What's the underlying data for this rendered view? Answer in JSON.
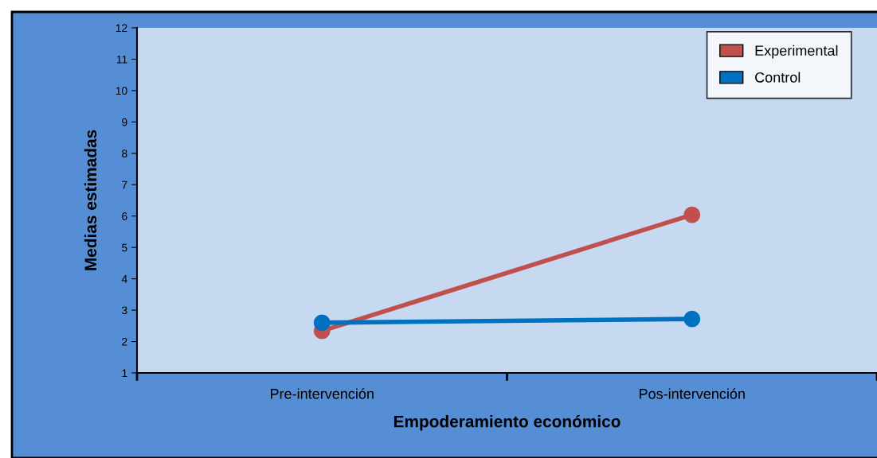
{
  "chart_data": {
    "type": "line",
    "xlabel": "Empoderamiento económico",
    "ylabel": "Medias estimadas",
    "categories": [
      "Pre-intervención",
      "Pos-intervención"
    ],
    "series": [
      {
        "name": "Experimental",
        "color": "#c0504d",
        "values": [
          2.34,
          6.04
        ]
      },
      {
        "name": "Control",
        "color": "#0070c0",
        "values": [
          2.6,
          2.72
        ]
      }
    ],
    "ylim": [
      1,
      12
    ],
    "yticks": [
      1,
      2,
      3,
      4,
      5,
      6,
      7,
      8,
      9,
      10,
      11,
      12
    ],
    "legend": "top right",
    "marker": "circle",
    "line_style": "solid",
    "grid": false
  }
}
